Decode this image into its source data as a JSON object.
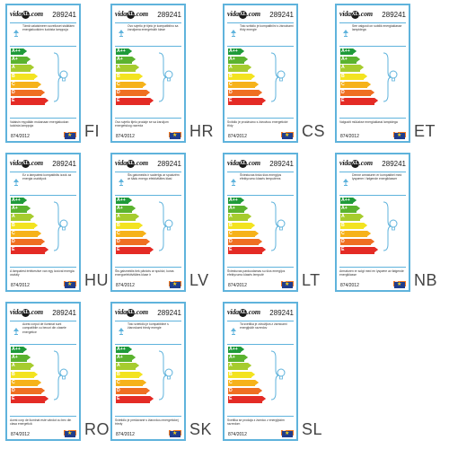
{
  "brand": "vidaXL",
  "brand_parts": {
    "prefix": "vida",
    "ring": "XL",
    "suffix": ".com"
  },
  "product_number": "289241",
  "regulation": "874/2012",
  "current_class": "D",
  "energy_classes": [
    {
      "label": "A++",
      "color": "#1f9a3a"
    },
    {
      "label": "A+",
      "color": "#5bb32f"
    },
    {
      "label": "A",
      "color": "#a6cc2e"
    },
    {
      "label": "B",
      "color": "#f3e320"
    },
    {
      "label": "C",
      "color": "#f6b21a"
    },
    {
      "label": "D",
      "color": "#ef6f22"
    },
    {
      "label": "E",
      "color": "#e42b25"
    }
  ],
  "labels": [
    {
      "lang": "FI",
      "top_text": "Tämä valaisimeen sovelluset sisältäen energialuokkien luokista lamppuja",
      "bottom_text": "Valaisin myydään mukanaan energialuokan luokista lamppuja"
    },
    {
      "lang": "HR",
      "top_text": "Ovo svjetlo je tijelo je kompatibilno sa žaruljama energetskih klase",
      "bottom_text": "Ovo svjetlo tijelo prodaje se sa žaruljom energetskog razreda"
    },
    {
      "lang": "CS",
      "top_text": "Toto svítidlo je kompatibilní s žárovkami třídy energie",
      "bottom_text": "Svítidlo je prodáváno s žárovkou energetické třídy"
    },
    {
      "lang": "ET",
      "top_text": "See valgusti on sobilik energiaklasse lampidega",
      "bottom_text": "Valgustit müüakse energiaklassi lampidega"
    },
    {
      "lang": "HU",
      "top_text": "Ez a lámpatest kompatibilis izzók az energia osztályok",
      "bottom_text": "A lámpatest értékesítve van egy izzóval energia osztály"
    },
    {
      "lang": "LV",
      "top_text": "Šis gaismeklis ir saderīgs ar spuldzēm ar šādu energo efektivitātes klasi",
      "bottom_text": "Šis gaismeklis tiek pārdots ar spuldzi, kuras energoefektivitātes klase ir"
    },
    {
      "lang": "LT",
      "top_text": "Šviestuvas tinka šios energijos efektyvumo klasės lemputėms",
      "bottom_text": "Šviestuvas parduodamas su šios energijos efektyvumo klasės lemputė"
    },
    {
      "lang": "NB",
      "top_text": "Denne armaturen er kompatibel med lyspærer i følgende energiklasser",
      "bottom_text": "Armaturen er solgt med en lyspære av følgende energiklasse"
    },
    {
      "lang": "RO",
      "top_text": "Acest corpul de iluminat sunt compatibile cu becuri din clasele energetice",
      "bottom_text": "Acest corp de iluminat este vândut cu bec din clasa energetică"
    },
    {
      "lang": "SK",
      "top_text": "Toto svietidlo je kompatibilné s žiarovkami triedy energie",
      "bottom_text": "Svietidlo je predávané s žiarovkou energetickej triedy"
    },
    {
      "lang": "SL",
      "top_text": "Ta svetilka je združljiva z žarnicami energijskih razredov",
      "bottom_text": "Svetilka se prodaja z žarnico z energijskim razredom"
    }
  ],
  "colors": {
    "frame": "#5fb3dc",
    "class_tag": "#f47a20",
    "eu_flag": "#203d8d"
  }
}
